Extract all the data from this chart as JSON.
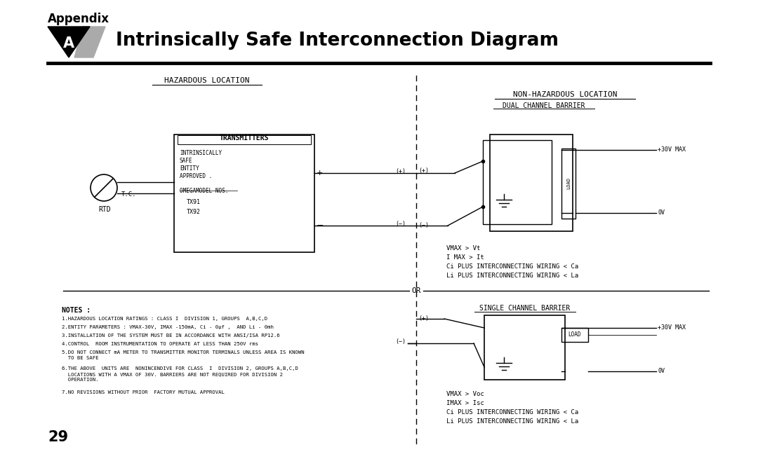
{
  "bg_color": "#ffffff",
  "title_appendix": "Appendix",
  "title_main": "Intrinsically Safe Interconnection Diagram",
  "page_number": "29",
  "haz_location_label": "HAZARDOUS LOCATION",
  "non_haz_location_label": "NON-HAZARDOUS LOCATION",
  "dual_channel_label": "DUAL CHANNEL BARRIER",
  "single_channel_label": "SINGLE CHANNEL BARRIER",
  "transmitters_label": "TRANSMITTERS",
  "transmitters_sub": "INTRINSICALLY\nSAFE\nENTITY\nAPPROVED .",
  "omega_model": "OMEGAMODEL NOS.",
  "model_nos": "TX91\nTX92",
  "rtd_label": "RTD",
  "tc_label": "T.C.",
  "or_label": "OR",
  "notes_header": "NOTES :",
  "notes": [
    "1.HAZARDOUS LOCATION RATINGS : CLASS I  DIVISION 1, GROUPS  A,B,C,D",
    "2.ENTITY PARAMETERS : VMAX-30V, IMAX -150mA, Ci - 0μf ,  AND Li - 0mh",
    "3.INSTALLATION OF THE SYSTEM MUST BE IN ACCORDANCE WITH ANSI/ISA RP12.6",
    "4.CONTROL  ROOM INSTRUMENTATION TO OPERATE AT LESS THAN 250V rms",
    "5.DO NOT CONNECT mA METER TO TRANSMITTER MONITOR TERMINALS UNLESS AREA IS KNOWN\n  TO BE SAFE",
    "6.THE ABOVE  UNITS ARE  NONINCENDIVE FOR CLASS  I  DIVISION 2, GROUPS A,B,C,D\n  LOCATIONS WITH A VMAX OF 30V. BARRIERS ARE NOT REQUIRED FOR DIVISION 2\n  OPERATION.",
    "7.NO REVISIONS WITHOUT PRIOR  FACTORY MUTUAL APPROVAL"
  ],
  "dual_specs_line1": "VMAX > Vt",
  "dual_specs_line2": "I MAX > It",
  "dual_specs_line3": "Ci PLUS INTERCONNECTING WIRING < Ca",
  "dual_specs_line4": "Li PLUS INTERCONNECTING WIRING < La",
  "single_specs_line1": "VMAX > Voc",
  "single_specs_line2": "IMAX > Isc",
  "single_specs_line3": "Ci PLUS INTERCONNECTING WIRING < Ca",
  "single_specs_line4": "Li PLUS INTERCONNECTING WIRING < La",
  "plus30v": "+30V MAX",
  "ov": "0V",
  "load": "LOAD",
  "header_bar_color": "#1a1a1a",
  "line_color": "#1a1a1a"
}
